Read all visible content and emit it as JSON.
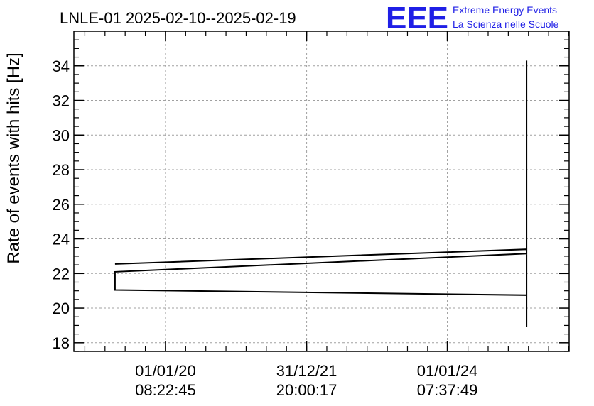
{
  "chart_data": {
    "type": "line",
    "title": "LNLE-01 2025-02-10--2025-02-19",
    "ylabel": "Rate of events with hits [Hz]",
    "xlabel": "",
    "logo": {
      "mark": "EEE",
      "line1": "Extreme Energy Events",
      "line2": "La Scienza nelle Scuole"
    },
    "ylim": [
      17.5,
      36
    ],
    "yticks": [
      18,
      20,
      22,
      24,
      26,
      28,
      30,
      32,
      34
    ],
    "xlim": [
      0.0,
      1.0
    ],
    "xticks": [
      {
        "pos": 0.185,
        "date": "01/01/20",
        "time": "08:22:45"
      },
      {
        "pos": 0.47,
        "date": "31/12/21",
        "time": "20:00:17"
      },
      {
        "pos": 0.754,
        "date": "01/01/24",
        "time": "07:37:49"
      }
    ],
    "grid": true,
    "series": [
      {
        "x": [
          0.083,
          0.914,
          0.914,
          0.083,
          0.083,
          0.083,
          0.914,
          0.914,
          0.914,
          0.914,
          0.914,
          0.914
        ],
        "y": [
          22.55,
          23.4,
          23.15,
          22.1,
          21.05,
          21.05,
          20.75,
          21.2,
          34.3,
          18.9,
          30.2,
          24.5
        ]
      }
    ]
  }
}
